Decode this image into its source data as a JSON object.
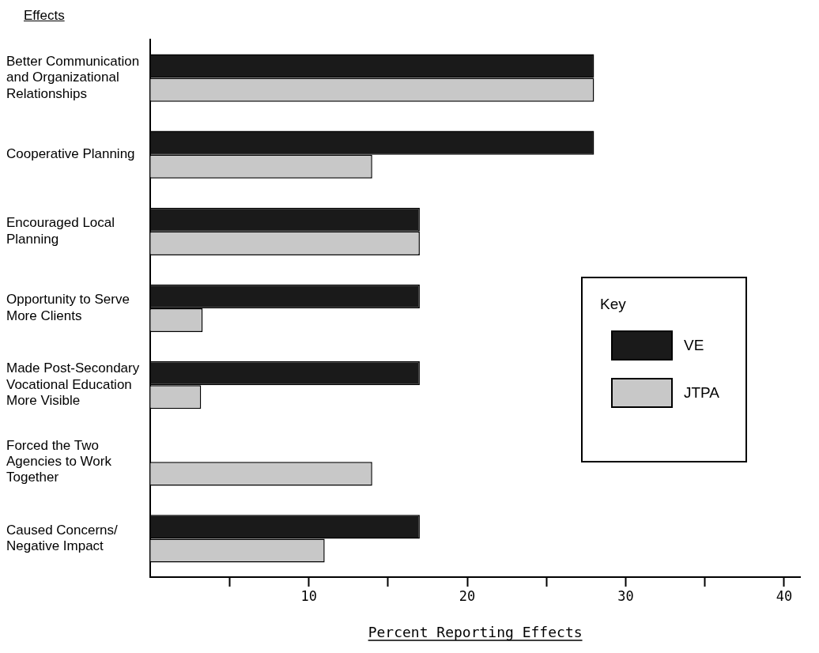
{
  "chart_data": {
    "type": "bar",
    "orientation": "horizontal",
    "ylabel": "Effects",
    "xlabel": "Percent Reporting Effects",
    "categories": [
      "Better Communication and Organizational Relationships",
      "Cooperative Planning",
      "Encouraged Local Planning",
      "Opportunity to Serve More Clients",
      "Made Post-Secondary Vocational Education More Visible",
      "Forced the Two Agencies to Work Together",
      "Caused Concerns/ Negative Impact"
    ],
    "series": [
      {
        "name": "VE",
        "color": "#1a1a1a",
        "values": [
          28,
          28,
          17,
          17,
          17,
          null,
          17
        ]
      },
      {
        "name": "JTPA",
        "color": "#c8c8c8",
        "values": [
          28,
          14,
          17,
          3.3,
          3.2,
          14,
          11
        ]
      }
    ],
    "xlim": [
      0,
      41
    ],
    "xticks": [
      {
        "value": 5,
        "label": null
      },
      10,
      {
        "value": 15,
        "label": null
      },
      20,
      {
        "value": 25,
        "label": null
      },
      30,
      {
        "value": 35,
        "label": null
      },
      40
    ],
    "legend": "right",
    "legend_title": "Key",
    "grid": false
  }
}
